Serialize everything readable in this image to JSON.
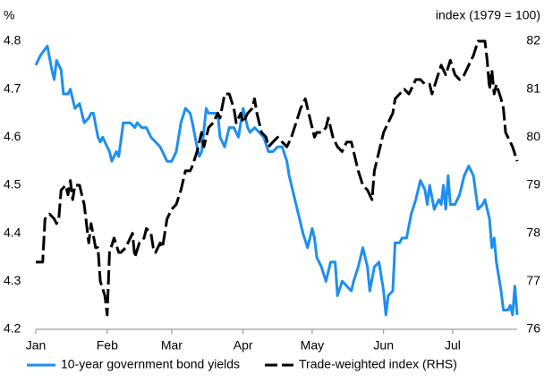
{
  "chart_data": {
    "type": "line",
    "ylabel": "%",
    "y2label": "index (1979 = 100)",
    "xlim": [
      0,
      209
    ],
    "xticks": [
      {
        "value": 0,
        "label": "Jan"
      },
      {
        "value": 31,
        "label": "Feb"
      },
      {
        "value": 59,
        "label": "Mar"
      },
      {
        "value": 90,
        "label": "Apr"
      },
      {
        "value": 120,
        "label": "May"
      },
      {
        "value": 151,
        "label": "Jun"
      },
      {
        "value": 181,
        "label": "Jul"
      }
    ],
    "ylim": [
      4.2,
      4.8
    ],
    "yticks": [
      4.2,
      4.3,
      4.4,
      4.5,
      4.6,
      4.7,
      4.8
    ],
    "y2lim": [
      76,
      82
    ],
    "y2ticks": [
      76,
      77,
      78,
      79,
      80,
      81,
      82
    ],
    "legend": "bottom",
    "series": [
      {
        "name": "10-year government bond yields",
        "color": "#1e8ff0",
        "line_style": "solid",
        "x": [
          0,
          2,
          5,
          7,
          8,
          9,
          11,
          12,
          14,
          15,
          17,
          19,
          21,
          23,
          24,
          25,
          27,
          28,
          29,
          31,
          32,
          33,
          35,
          36,
          38,
          40,
          41,
          43,
          44,
          46,
          48,
          50,
          52,
          54,
          56,
          57,
          59,
          61,
          63,
          65,
          67,
          68,
          70,
          71,
          72,
          74,
          75,
          77,
          79,
          80,
          82,
          84,
          86,
          88,
          90,
          92,
          93,
          95,
          97,
          99,
          101,
          103,
          105,
          107,
          109,
          110,
          112,
          114,
          116,
          118,
          120,
          121,
          122,
          124,
          126,
          128,
          130,
          131,
          133,
          135,
          137,
          138,
          140,
          142,
          144,
          145,
          147,
          149,
          151,
          152,
          153,
          155,
          156,
          158,
          159,
          161,
          163,
          165,
          167,
          169,
          170,
          171,
          173,
          175,
          176,
          177,
          178,
          179,
          180,
          182,
          184,
          186,
          188,
          190,
          192,
          194,
          195,
          197,
          198,
          199,
          200,
          202,
          203,
          205,
          206,
          207,
          208,
          209
        ],
        "values": [
          4.75,
          4.77,
          4.79,
          4.74,
          4.72,
          4.76,
          4.74,
          4.69,
          4.69,
          4.7,
          4.66,
          4.67,
          4.63,
          4.64,
          4.65,
          4.65,
          4.6,
          4.59,
          4.6,
          4.58,
          4.57,
          4.55,
          4.57,
          4.56,
          4.63,
          4.63,
          4.63,
          4.62,
          4.63,
          4.62,
          4.62,
          4.6,
          4.59,
          4.58,
          4.56,
          4.55,
          4.55,
          4.57,
          4.63,
          4.66,
          4.65,
          4.63,
          4.58,
          4.56,
          4.57,
          4.66,
          4.65,
          4.65,
          4.65,
          4.6,
          4.58,
          4.62,
          4.62,
          4.6,
          4.66,
          4.62,
          4.61,
          4.62,
          4.61,
          4.6,
          4.57,
          4.57,
          4.58,
          4.58,
          4.55,
          4.52,
          4.48,
          4.44,
          4.4,
          4.37,
          4.41,
          4.39,
          4.35,
          4.33,
          4.3,
          4.34,
          4.34,
          4.27,
          4.3,
          4.29,
          4.28,
          4.3,
          4.33,
          4.37,
          4.33,
          4.28,
          4.33,
          4.34,
          4.28,
          4.23,
          4.27,
          4.28,
          4.38,
          4.38,
          4.39,
          4.39,
          4.44,
          4.47,
          4.51,
          4.49,
          4.46,
          4.5,
          4.45,
          4.47,
          4.46,
          4.5,
          4.45,
          4.52,
          4.46,
          4.46,
          4.48,
          4.52,
          4.54,
          4.52,
          4.45,
          4.46,
          4.47,
          4.43,
          4.37,
          4.39,
          4.34,
          4.28,
          4.24,
          4.24,
          4.25,
          4.23,
          4.29,
          4.23
        ]
      },
      {
        "name": "Trade-weighted index (RHS)",
        "color": "#000000",
        "line_style": "dashed",
        "axis": "y2",
        "x": [
          0,
          3,
          4,
          6,
          8,
          9,
          10,
          11,
          13,
          14,
          15,
          16,
          17,
          19,
          20,
          21,
          23,
          24,
          26,
          27,
          28,
          30,
          31,
          32,
          34,
          36,
          37,
          39,
          40,
          42,
          43,
          45,
          47,
          48,
          50,
          51,
          52,
          54,
          55,
          57,
          59,
          61,
          63,
          65,
          67,
          68,
          70,
          72,
          73,
          75,
          77,
          79,
          80,
          82,
          84,
          86,
          87,
          89,
          90,
          92,
          94,
          95,
          96,
          98,
          100,
          101,
          103,
          105,
          107,
          109,
          111,
          113,
          115,
          117,
          119,
          121,
          122,
          124,
          126,
          127,
          129,
          131,
          133,
          135,
          137,
          138,
          140,
          142,
          144,
          146,
          147,
          149,
          151,
          153,
          155,
          156,
          158,
          160,
          162,
          163,
          165,
          167,
          169,
          171,
          172,
          174,
          176,
          178,
          180,
          182,
          184,
          186,
          188,
          190,
          192,
          195,
          196,
          197,
          198,
          199,
          200,
          202,
          203,
          204,
          206,
          207,
          209
        ],
        "values": [
          77.4,
          77.4,
          78.3,
          78.4,
          78.3,
          78.2,
          78.3,
          78.9,
          79.0,
          78.8,
          79.1,
          78.7,
          79.0,
          79.0,
          78.8,
          78.6,
          77.8,
          78.2,
          77.7,
          77.7,
          77.0,
          76.7,
          76.3,
          77.6,
          77.9,
          77.6,
          77.6,
          77.7,
          77.8,
          78.0,
          77.5,
          77.8,
          77.9,
          78.1,
          78.0,
          77.7,
          77.6,
          77.8,
          77.7,
          78.3,
          78.5,
          78.6,
          78.9,
          79.3,
          79.3,
          79.4,
          79.7,
          80.1,
          79.8,
          80.2,
          80.3,
          80.5,
          80.4,
          80.9,
          80.9,
          80.6,
          80.3,
          80.5,
          80.3,
          80.5,
          80.6,
          80.8,
          80.5,
          80.1,
          80.0,
          79.8,
          79.9,
          80.0,
          79.9,
          79.8,
          80.0,
          80.3,
          80.6,
          80.8,
          80.4,
          80.0,
          80.1,
          80.1,
          80.2,
          80.4,
          80.0,
          79.8,
          79.7,
          79.9,
          79.9,
          79.7,
          79.3,
          79.0,
          78.9,
          78.7,
          79.3,
          79.7,
          80.1,
          80.3,
          80.5,
          80.8,
          80.9,
          81.0,
          80.9,
          81.0,
          81.2,
          81.2,
          81.1,
          81.1,
          80.9,
          81.2,
          81.5,
          81.3,
          81.6,
          81.3,
          81.2,
          81.3,
          81.5,
          81.7,
          82.0,
          82.0,
          81.6,
          81.0,
          81.4,
          80.9,
          81.1,
          80.8,
          80.6,
          80.1,
          79.9,
          79.8,
          79.5
        ]
      }
    ]
  }
}
